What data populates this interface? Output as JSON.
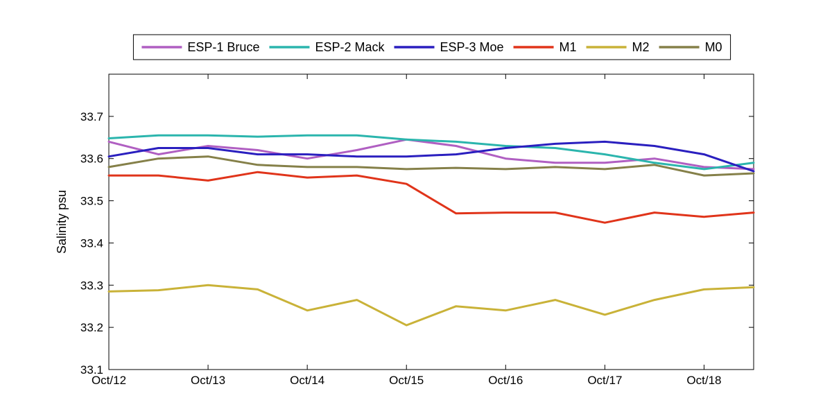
{
  "chart_data": {
    "type": "line",
    "xlabel": "",
    "ylabel": "Salinity psu",
    "xlim": [
      "Oct/12",
      "Oct/18 12:00"
    ],
    "ylim": [
      33.1,
      33.8
    ],
    "x_ticks": [
      "Oct/12",
      "Oct/13",
      "Oct/14",
      "Oct/15",
      "Oct/16",
      "Oct/17",
      "Oct/18"
    ],
    "y_ticks": [
      "33.1",
      "33.2",
      "33.3",
      "33.4",
      "33.5",
      "33.6",
      "33.7"
    ],
    "grid": false,
    "legend": {
      "placement": "top",
      "orientation": "horizontal"
    },
    "x": [
      "Oct/12 00:00",
      "Oct/12 12:00",
      "Oct/13 00:00",
      "Oct/13 12:00",
      "Oct/14 00:00",
      "Oct/14 12:00",
      "Oct/15 00:00",
      "Oct/15 12:00",
      "Oct/16 00:00",
      "Oct/16 12:00",
      "Oct/17 00:00",
      "Oct/17 12:00",
      "Oct/18 00:00",
      "Oct/18 12:00"
    ],
    "series": [
      {
        "name": "ESP-1 Bruce",
        "color": "#b05fc2",
        "values": [
          33.64,
          33.61,
          33.63,
          33.62,
          33.6,
          33.62,
          33.645,
          33.63,
          33.6,
          33.59,
          33.59,
          33.6,
          33.58,
          33.575
        ]
      },
      {
        "name": "ESP-2 Mack",
        "color": "#2bb5ad",
        "values": [
          33.648,
          33.655,
          33.655,
          33.652,
          33.655,
          33.655,
          33.645,
          33.64,
          33.63,
          33.625,
          33.61,
          33.59,
          33.575,
          33.59
        ]
      },
      {
        "name": "ESP-3 Moe",
        "color": "#2a1fbf",
        "values": [
          33.605,
          33.625,
          33.625,
          33.61,
          33.61,
          33.605,
          33.605,
          33.61,
          33.625,
          33.635,
          33.64,
          33.63,
          33.61,
          33.57
        ]
      },
      {
        "name": "M1",
        "color": "#e0341a",
        "values": [
          33.56,
          33.56,
          33.548,
          33.568,
          33.555,
          33.56,
          33.54,
          33.47,
          33.472,
          33.472,
          33.448,
          33.472,
          33.462,
          33.472
        ]
      },
      {
        "name": "M2",
        "color": "#c9b238",
        "values": [
          33.285,
          33.288,
          33.3,
          33.29,
          33.24,
          33.265,
          33.205,
          33.25,
          33.24,
          33.265,
          33.23,
          33.265,
          33.29,
          33.295
        ]
      },
      {
        "name": "M0",
        "color": "#858049",
        "values": [
          33.58,
          33.6,
          33.605,
          33.585,
          33.58,
          33.58,
          33.575,
          33.578,
          33.575,
          33.58,
          33.575,
          33.585,
          33.56,
          33.565
        ]
      }
    ]
  }
}
